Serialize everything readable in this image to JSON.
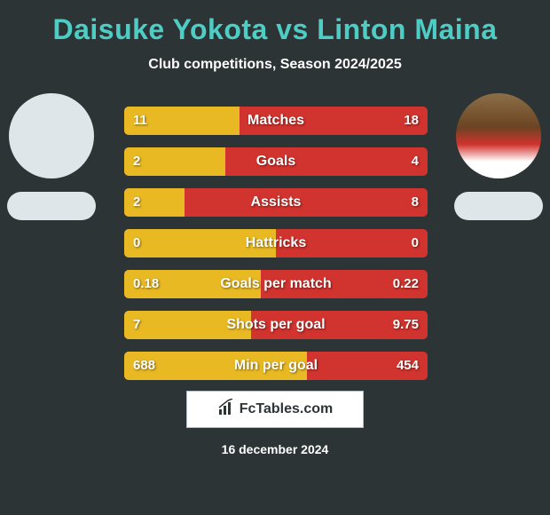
{
  "title": "Daisuke Yokota vs Linton Maina",
  "subtitle": "Club competitions, Season 2024/2025",
  "date": "16 december 2024",
  "logo_text": "FcTables.com",
  "colors": {
    "background": "#2d3436",
    "title_color": "#4ecdc4",
    "bar_left": "#e8b923",
    "bar_right": "#d1332e",
    "text": "#ffffff"
  },
  "stats": [
    {
      "label": "Matches",
      "left_value": "11",
      "right_value": "18",
      "left_pct": 37.9
    },
    {
      "label": "Goals",
      "left_value": "2",
      "right_value": "4",
      "left_pct": 33.3
    },
    {
      "label": "Assists",
      "left_value": "2",
      "right_value": "8",
      "left_pct": 20.0
    },
    {
      "label": "Hattricks",
      "left_value": "0",
      "right_value": "0",
      "left_pct": 50.0
    },
    {
      "label": "Goals per match",
      "left_value": "0.18",
      "right_value": "0.22",
      "left_pct": 45.0
    },
    {
      "label": "Shots per goal",
      "left_value": "7",
      "right_value": "9.75",
      "left_pct": 41.8
    },
    {
      "label": "Min per goal",
      "left_value": "688",
      "right_value": "454",
      "left_pct": 60.2
    }
  ]
}
